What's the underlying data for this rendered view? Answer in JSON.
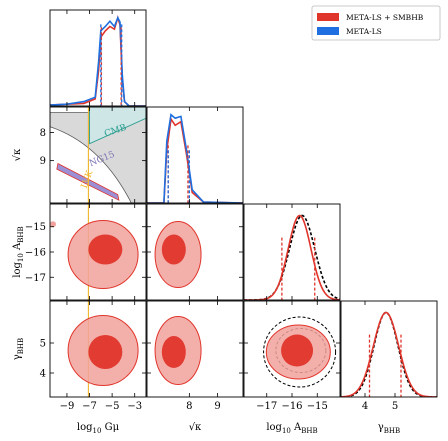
{
  "chart_data": {
    "type": "corner",
    "parameters": [
      "log10_Gmu",
      "sqrt_kappa",
      "log10_A_BHB",
      "gamma_BHB"
    ],
    "axis_labels": {
      "log10_Gmu": {
        "main": "log",
        "sub": "10",
        "rest": " Gμ"
      },
      "sqrt_kappa": {
        "main": "√κ"
      },
      "log10_A_BHB": {
        "main": "log",
        "sub": "10",
        "rest": " A",
        "sub2": "BHB"
      },
      "gamma_BHB": {
        "main": "γ",
        "sub": "BHB"
      }
    },
    "ranges": {
      "log10_Gmu": [
        -10.5,
        -2
      ],
      "sqrt_kappa": [
        6.5,
        9.9
      ],
      "log10_A_BHB": [
        -17.9,
        -14.1
      ],
      "gamma_BHB": [
        3.2,
        6.4
      ]
    },
    "ticks": {
      "log10_Gmu": [
        -9,
        -7,
        -5,
        -3
      ],
      "sqrt_kappa": [
        8,
        9
      ],
      "sqrt_kappa_bottom": [
        8,
        9
      ],
      "log10_A_BHB": [
        -17,
        -16,
        -15
      ],
      "gamma_BHB": [
        4,
        5
      ]
    },
    "tick_labels": {
      "log10_Gmu": [
        "−9",
        "−7",
        "−5",
        "−3"
      ],
      "sqrt_kappa": [
        "8",
        "9"
      ],
      "log10_A_BHB_y": [
        "−15",
        "−16",
        "−17"
      ],
      "log10_A_BHB_x": [
        "−17",
        "−16",
        "−15"
      ],
      "gamma_BHB_y": [
        "5",
        "4"
      ],
      "gamma_BHB_x": [
        "4",
        "5"
      ]
    },
    "legend": {
      "placement": "top-right",
      "entries": [
        {
          "label": "META-LS + SMBHB",
          "color": "#e0352b"
        },
        {
          "label": "META-LS",
          "color": "#1f6fe0"
        }
      ]
    },
    "colors": {
      "red": "#e0352b",
      "blue": "#1f6fe0",
      "red_fill_light": "#f1a29c",
      "red_fill_dark": "#e0352b",
      "cmb_fill": "#cfe6e6",
      "cmb_edge": "#2a9d8f",
      "excluded_fill": "#d9d9d9",
      "ngi5_fill": "#9b8fd6",
      "lvk": "#f0b429"
    },
    "marginals": {
      "log10_Gmu": {
        "red": [
          [
            -10.5,
            0.01
          ],
          [
            -9,
            0.02
          ],
          [
            -7.5,
            0.03
          ],
          [
            -6.5,
            0.08
          ],
          [
            -6.2,
            0.4
          ],
          [
            -6,
            0.78
          ],
          [
            -5.6,
            0.85
          ],
          [
            -5.2,
            0.9
          ],
          [
            -4.8,
            0.87
          ],
          [
            -4.5,
            1.0
          ],
          [
            -4.3,
            0.92
          ],
          [
            -4.1,
            0.3
          ],
          [
            -3.9,
            0.05
          ],
          [
            -3.5,
            0.0
          ],
          [
            -2,
            0.0
          ]
        ],
        "blue": [
          [
            -10.5,
            0.01
          ],
          [
            -9,
            0.02
          ],
          [
            -7.5,
            0.05
          ],
          [
            -6.5,
            0.1
          ],
          [
            -6.2,
            0.5
          ],
          [
            -6,
            0.85
          ],
          [
            -5.6,
            0.9
          ],
          [
            -5.2,
            0.96
          ],
          [
            -4.8,
            0.9
          ],
          [
            -4.5,
            1.0
          ],
          [
            -4.3,
            0.95
          ],
          [
            -4.1,
            0.35
          ],
          [
            -3.9,
            0.05
          ],
          [
            -3.5,
            0.0
          ],
          [
            -2,
            0.0
          ]
        ],
        "quantiles_red": [
          -5.95,
          -4.2
        ],
        "quantiles_blue": [
          -6.0,
          -4.15
        ]
      },
      "sqrt_kappa": {
        "red": [
          [
            6.5,
            0
          ],
          [
            7.1,
            0
          ],
          [
            7.2,
            0.6
          ],
          [
            7.35,
            0.95
          ],
          [
            7.5,
            0.88
          ],
          [
            7.7,
            0.92
          ],
          [
            7.9,
            0.55
          ],
          [
            8.1,
            0.12
          ],
          [
            8.5,
            0.01
          ],
          [
            9.9,
            0
          ]
        ],
        "blue": [
          [
            6.5,
            0
          ],
          [
            7.1,
            0
          ],
          [
            7.2,
            0.7
          ],
          [
            7.35,
            1.0
          ],
          [
            7.5,
            0.96
          ],
          [
            7.7,
            0.98
          ],
          [
            7.9,
            0.6
          ],
          [
            8.1,
            0.15
          ],
          [
            8.5,
            0.01
          ],
          [
            9.9,
            0
          ]
        ],
        "quantiles_red": [
          7.25,
          7.95
        ],
        "quantiles_blue": [
          7.25,
          8.0
        ]
      },
      "log10_A_BHB": {
        "red": {
          "mu": -15.7,
          "sigma": 0.45
        },
        "black": {
          "mu": -15.6,
          "sigma": 0.5
        },
        "quantiles_red": [
          -16.4,
          -15.1
        ]
      },
      "gamma_BHB": {
        "red": {
          "mu": 4.7,
          "sigma": 0.42
        },
        "black": {
          "mu": 4.7,
          "sigma": 0.4
        },
        "quantiles_red": [
          4.15,
          5.2
        ]
      }
    },
    "annotations": {
      "cmb": "CMB",
      "ngi5": "NG15",
      "lvk": "LVK",
      "lvk_value": -7.1
    }
  }
}
